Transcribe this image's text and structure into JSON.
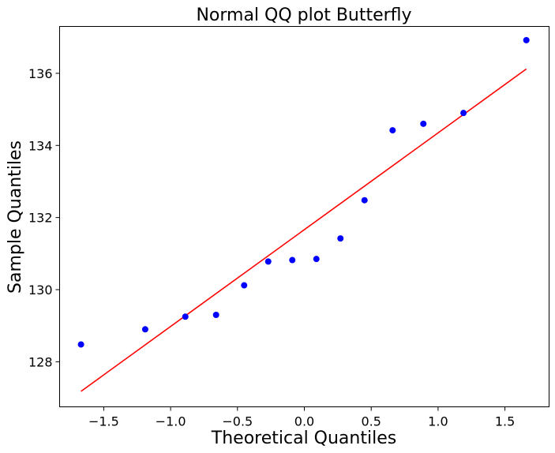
{
  "chart_data": {
    "type": "scatter",
    "title": "Normal QQ plot Butterfly",
    "xlabel": "Theoretical Quantiles",
    "ylabel": "Sample Quantiles",
    "xlim": [
      -1.83,
      1.83
    ],
    "ylim": [
      126.75,
      137.3
    ],
    "grid": false,
    "x_ticks": [
      -1.5,
      -1.0,
      -0.5,
      0.0,
      0.5,
      1.0,
      1.5
    ],
    "x_tick_labels": [
      "−1.5",
      "−1.0",
      "−0.5",
      "0.0",
      "0.5",
      "1.0",
      "1.5"
    ],
    "y_ticks": [
      128,
      130,
      132,
      134,
      136
    ],
    "y_tick_labels": [
      "128",
      "130",
      "132",
      "134",
      "136"
    ],
    "points": [
      {
        "x": -1.67,
        "y": 128.48
      },
      {
        "x": -1.19,
        "y": 128.9
      },
      {
        "x": -0.89,
        "y": 129.25
      },
      {
        "x": -0.66,
        "y": 129.3
      },
      {
        "x": -0.45,
        "y": 130.12
      },
      {
        "x": -0.27,
        "y": 130.78
      },
      {
        "x": -0.09,
        "y": 130.82
      },
      {
        "x": 0.09,
        "y": 130.85
      },
      {
        "x": 0.27,
        "y": 131.42
      },
      {
        "x": 0.45,
        "y": 132.48
      },
      {
        "x": 0.66,
        "y": 134.42
      },
      {
        "x": 0.89,
        "y": 134.6
      },
      {
        "x": 1.19,
        "y": 134.9
      },
      {
        "x": 1.66,
        "y": 136.92
      }
    ],
    "reference_line": {
      "x": [
        -1.67,
        1.66
      ],
      "y": [
        127.18,
        136.12
      ]
    },
    "point_color": "#0000ff",
    "line_color": "#ff0000"
  }
}
